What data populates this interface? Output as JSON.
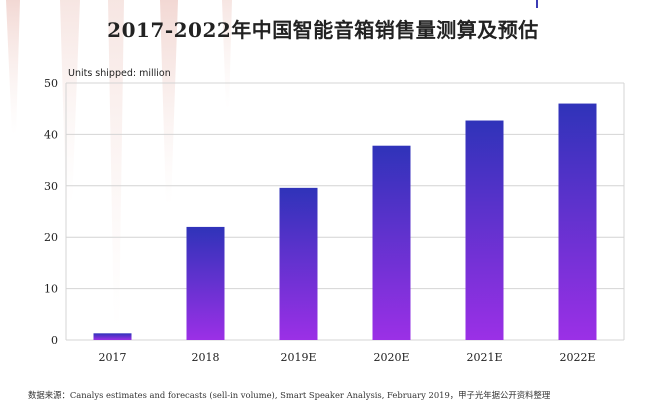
{
  "page": {
    "title": "2017-2022年中国智能音箱销售量测算及预估",
    "source": "数据来源：Canalys estimates and forecasts (sell-in volume), Smart Speaker Analysis, February 2019，甲子光年据公开资料整理"
  },
  "colors": {
    "bar_top": "#2f33b9",
    "bar_bottom": "#9b30e6",
    "grid": "#d4d4d4",
    "text": "#222222"
  },
  "chart_data": {
    "type": "bar",
    "title": "2017-2022年中国智能音箱销售量测算及预估",
    "unit_label": "Units shipped: million",
    "xlabel": "",
    "ylabel": "Units shipped: million",
    "categories": [
      "2017",
      "2018",
      "2019E",
      "2020E",
      "2021E",
      "2022E"
    ],
    "values": [
      1.3,
      22.0,
      29.6,
      37.8,
      42.7,
      46.0
    ],
    "ylim": [
      0,
      50
    ],
    "yticks": [
      0,
      10,
      20,
      30,
      40,
      50
    ],
    "grid": true,
    "legend": "none"
  }
}
